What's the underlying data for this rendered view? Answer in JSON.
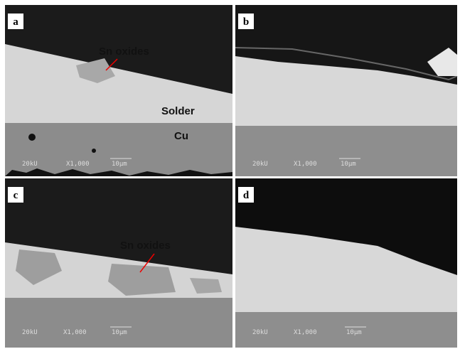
{
  "panels": [
    {
      "label": "a",
      "annotations": [
        "Sn oxides",
        "Solder",
        "Cu"
      ],
      "scale": {
        "kv": "20kU",
        "mag": "X1,000",
        "bar": "10μm"
      }
    },
    {
      "label": "b",
      "annotations": [],
      "scale": {
        "kv": "20kU",
        "mag": "X1,000",
        "bar": "10μm"
      }
    },
    {
      "label": "c",
      "annotations": [
        "Sn oxides"
      ],
      "scale": {
        "kv": "20kU",
        "mag": "X1,000",
        "bar": "10μm"
      }
    },
    {
      "label": "d",
      "annotations": [],
      "scale": {
        "kv": "20kU",
        "mag": "X1,000",
        "bar": "10μm"
      }
    }
  ]
}
